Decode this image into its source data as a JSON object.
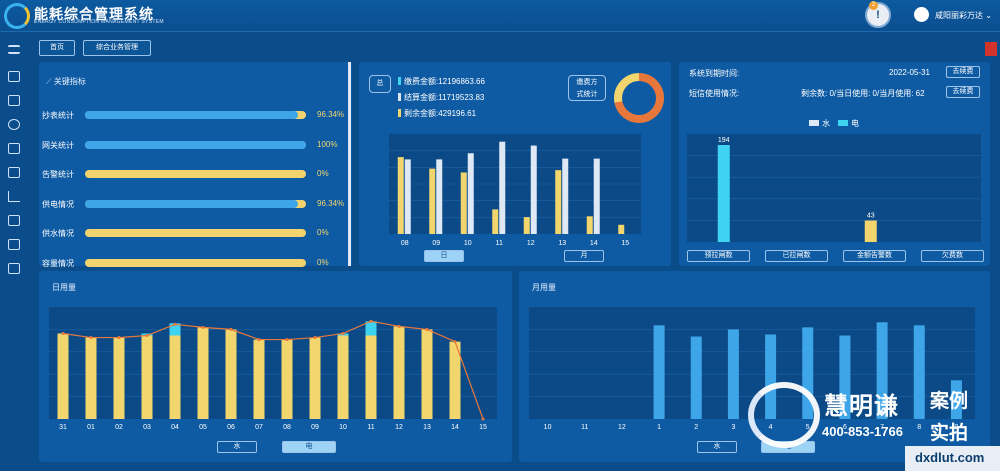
{
  "app": {
    "title": "能耗综合管理系统",
    "subtitle": "ENERGY CONSUMPTION MANAGEMENT SYSTEM"
  },
  "header": {
    "alert_count": "2",
    "alert_symbol": "!",
    "user": "咸阳丽彩万达"
  },
  "tabs": [
    {
      "label": "首页"
    },
    {
      "label": "综合业务管理"
    }
  ],
  "kpi": {
    "title": "关键指标",
    "items": [
      {
        "label": "抄表统计",
        "value": "96.34%",
        "pct": 96.34
      },
      {
        "label": "网关统计",
        "value": "100%",
        "pct": 100
      },
      {
        "label": "告警统计",
        "value": "0%",
        "pct": 0
      },
      {
        "label": "供电情况",
        "value": "96.34%",
        "pct": 96.34
      },
      {
        "label": "供水情况",
        "value": "0%",
        "pct": 0
      },
      {
        "label": "容量情况",
        "value": "0%",
        "pct": 0
      }
    ]
  },
  "payment": {
    "total_label": "总",
    "lines": [
      {
        "text": "缴费金额:12196863.66",
        "color": "#3fd3f2"
      },
      {
        "text": "结算金额:11719523.83",
        "color": "#dfe9f5"
      },
      {
        "text": "剩余金额:429196.61",
        "color": "#f2d56d"
      }
    ],
    "mode_label_1": "缴费方",
    "mode_label_2": "式统计",
    "btn_day": "日",
    "btn_month": "月"
  },
  "system": {
    "expire_label": "系统到期时间:",
    "expire_date": "2022-05-31",
    "renew_btn": "去续费",
    "sms_label": "短信使用情况:",
    "sms_usage": "剩余数: 0/当日使用: 0/当月使用: 62",
    "sms_renew_btn": "去续费",
    "legend_water": "水",
    "legend_elec": "电",
    "buttons": [
      "预拉闸数",
      "已拉闸数",
      "金额告警数",
      "欠费数"
    ]
  },
  "daily": {
    "title": "日用量",
    "btn_water": "水",
    "btn_elec": "电"
  },
  "monthly": {
    "title": "月用量",
    "btn_water": "水",
    "btn_elec": "电"
  },
  "watermark": {
    "name": "慧明谦",
    "phone": "400-853-1766",
    "tag1": "案例",
    "tag2": "实拍",
    "url": "dxdlut.com"
  },
  "colors": {
    "accent_yellow": "#f2d56d",
    "accent_cyan": "#3fd3f2",
    "accent_blue": "#3ea6e8",
    "line_orange": "#e8773c"
  },
  "chart_data": [
    {
      "type": "bar",
      "categories": [
        "08",
        "09",
        "10",
        "11",
        "12",
        "13",
        "14",
        "15"
      ],
      "series": [
        {
          "values": [
            100,
            85,
            80,
            32,
            22,
            83,
            23,
            12
          ],
          "color": "#f2d56d"
        },
        {
          "values": [
            97,
            97,
            105,
            120,
            115,
            98,
            98,
            0
          ],
          "color": "#dfe9f5"
        }
      ],
      "ylim": [
        0,
        130
      ]
    },
    {
      "type": "bar",
      "series": [
        {
          "name": "水",
          "values": [
            0,
            0,
            0,
            0
          ],
          "color": "#dfe9f5"
        },
        {
          "name": "电",
          "values": [
            194,
            0,
            43,
            0
          ],
          "color": "#3fd3f2"
        }
      ],
      "data_labels": [
        "194",
        "43"
      ],
      "ylim": [
        0,
        200
      ]
    },
    {
      "type": "bar",
      "categories": [
        "31",
        "01",
        "02",
        "03",
        "04",
        "05",
        "06",
        "07",
        "08",
        "09",
        "10",
        "11",
        "12",
        "13",
        "14",
        "15"
      ],
      "series": [
        {
          "values": [
            84,
            80,
            80,
            82,
            82,
            90,
            88,
            78,
            78,
            80,
            82,
            82,
            91,
            88,
            76,
            0
          ],
          "color": "#f2d56d"
        },
        {
          "values": [
            0,
            0,
            0,
            2,
            12,
            0,
            0,
            0,
            0,
            0,
            2,
            14,
            0,
            0,
            0,
            0
          ],
          "color": "#3fd3f2"
        }
      ],
      "line": [
        84,
        80,
        80,
        82,
        93,
        90,
        88,
        78,
        78,
        80,
        84,
        96,
        91,
        88,
        76,
        0
      ],
      "ylim": [
        0,
        110
      ]
    },
    {
      "type": "bar",
      "categories": [
        "10",
        "11",
        "12",
        "1",
        "2",
        "3",
        "4",
        "5",
        "6",
        "7",
        "8",
        "9"
      ],
      "series": [
        {
          "values": [
            0,
            0,
            0,
            92,
            81,
            88,
            83,
            90,
            82,
            95,
            92,
            38
          ],
          "color": "#3ea6e8"
        }
      ],
      "ylim": [
        0,
        110
      ]
    }
  ]
}
